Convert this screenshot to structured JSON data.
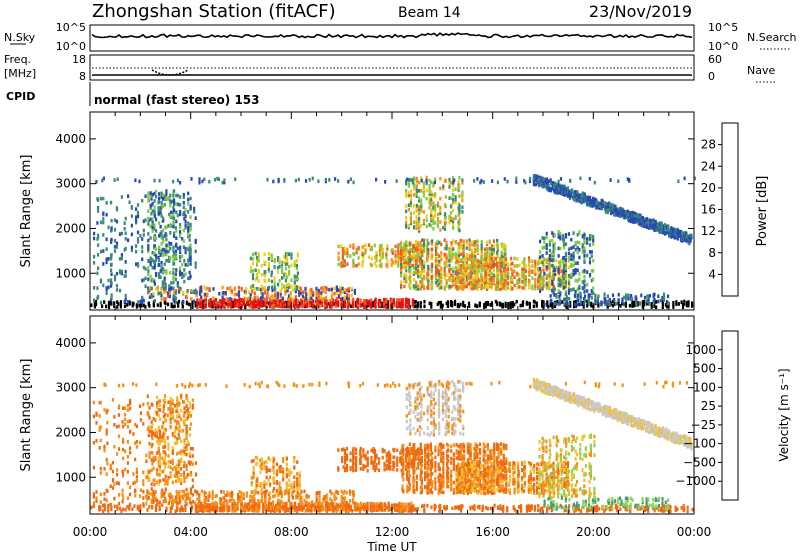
{
  "header": {
    "station": "Zhongshan Station (fitACF)",
    "beam": "Beam 14",
    "date": "23/Nov/2019"
  },
  "status_panels": {
    "nsky_label": "N.Sky",
    "nsky_ticks": [
      "10^5",
      "10^0"
    ],
    "nsearch_label": "N.Search",
    "nsearch_ticks": [
      "10^5",
      "10^0"
    ],
    "freq_label_1": "Freq.",
    "freq_label_2": "[MHz]",
    "freq_ticks": [
      "18",
      "8"
    ],
    "nave_label": "Nave",
    "nave_ticks": [
      "60",
      "0"
    ],
    "cpid_label": "CPID",
    "cpid_text": "normal (fast stereo) 153"
  },
  "chart_data": [
    {
      "type": "heatmap",
      "name": "power",
      "ylabel": "Slant Range [km]",
      "ylim": [
        180,
        4600
      ],
      "yticks": [
        "1000",
        "2000",
        "3000",
        "4000"
      ],
      "colorbar": {
        "label": "Power [dB]",
        "ticks": [
          "4",
          "8",
          "12",
          "16",
          "20",
          "24",
          "28"
        ],
        "colors": [
          "#0a14e6",
          "#2848b4",
          "#3a8a78",
          "#7fcc42",
          "#f2cc1a",
          "#f7901e",
          "#f15a22",
          "#e81010"
        ]
      }
    },
    {
      "type": "heatmap",
      "name": "velocity",
      "ylabel": "Slant Range [km]",
      "xlabel": "Time UT",
      "ylim": [
        180,
        4600
      ],
      "yticks": [
        "1000",
        "2000",
        "3000",
        "4000"
      ],
      "xticks": [
        "00:00",
        "04:00",
        "08:00",
        "12:00",
        "16:00",
        "20:00",
        "00:00"
      ],
      "colorbar": {
        "label": "Velocity [m s⁻¹]",
        "ticks": [
          "1000",
          "500",
          "100",
          "25",
          "−25",
          "−100",
          "−500",
          "−1000"
        ],
        "colors": [
          "#1f3cc4",
          "#3c6eaa",
          "#4c9a6e",
          "#8fd45a",
          "#c8c8c8",
          "#f2c030",
          "#f59018",
          "#ef6a10",
          "#e81010"
        ]
      }
    }
  ]
}
